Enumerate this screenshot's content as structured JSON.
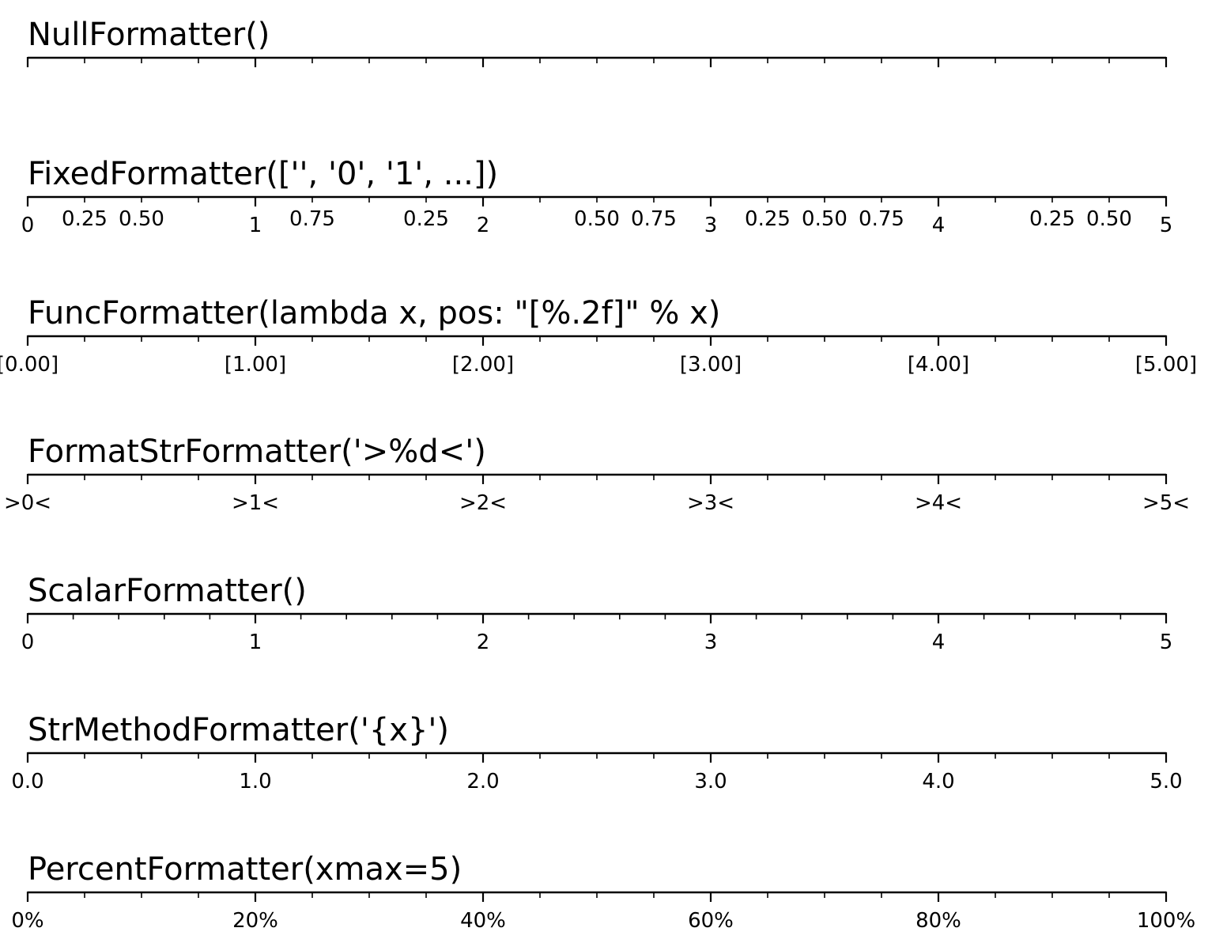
{
  "chart_data": [
    {
      "type": "axis",
      "title": "NullFormatter()",
      "xlim": [
        0,
        5
      ],
      "major_ticks": [
        0,
        1,
        2,
        3,
        4,
        5
      ],
      "major_labels": [],
      "minor_ticks": [
        0.25,
        0.5,
        0.75,
        1.25,
        1.5,
        1.75,
        2.25,
        2.5,
        2.75,
        3.25,
        3.5,
        3.75,
        4.25,
        4.5,
        4.75
      ],
      "minor_labels": []
    },
    {
      "type": "axis",
      "title": "FixedFormatter(['', '0', '1', ...])",
      "xlim": [
        0,
        5
      ],
      "major_ticks": [
        0,
        1,
        2,
        3,
        4,
        5
      ],
      "major_labels": [
        "0",
        "1",
        "2",
        "3",
        "4",
        "5"
      ],
      "minor_ticks": [
        0.25,
        0.5,
        0.75,
        1.25,
        1.5,
        1.75,
        2.25,
        2.5,
        2.75,
        3.25,
        3.5,
        3.75,
        4.25,
        4.5,
        4.75
      ],
      "minor_labels": [
        "0.25",
        "0.50",
        "",
        "0.75",
        "",
        "0.25",
        "",
        "0.50",
        "0.75",
        "0.25",
        "0.50",
        "0.75",
        "",
        "0.25",
        "0.50"
      ]
    },
    {
      "type": "axis",
      "title": "FuncFormatter(lambda x, pos: \"[%.2f]\" % x)",
      "xlim": [
        0,
        5
      ],
      "major_ticks": [
        0,
        1,
        2,
        3,
        4,
        5
      ],
      "major_labels": [
        "[0.00]",
        "[1.00]",
        "[2.00]",
        "[3.00]",
        "[4.00]",
        "[5.00]"
      ],
      "minor_ticks": [
        0.25,
        0.5,
        0.75,
        1.25,
        1.5,
        1.75,
        2.25,
        2.5,
        2.75,
        3.25,
        3.5,
        3.75,
        4.25,
        4.5,
        4.75
      ],
      "minor_labels": []
    },
    {
      "type": "axis",
      "title": "FormatStrFormatter('>%d<')",
      "xlim": [
        0,
        5
      ],
      "major_ticks": [
        0,
        1,
        2,
        3,
        4,
        5
      ],
      "major_labels": [
        ">0<",
        ">1<",
        ">2<",
        ">3<",
        ">4<",
        ">5<"
      ],
      "minor_ticks": [
        0.25,
        0.5,
        0.75,
        1.25,
        1.5,
        1.75,
        2.25,
        2.5,
        2.75,
        3.25,
        3.5,
        3.75,
        4.25,
        4.5,
        4.75
      ],
      "minor_labels": []
    },
    {
      "type": "axis",
      "title": "ScalarFormatter()",
      "xlim": [
        0,
        5
      ],
      "major_ticks": [
        0,
        1,
        2,
        3,
        4,
        5
      ],
      "major_labels": [
        "0",
        "1",
        "2",
        "3",
        "4",
        "5"
      ],
      "minor_ticks": [
        0.2,
        0.4,
        0.6,
        0.8,
        1.2,
        1.4,
        1.6,
        1.8,
        2.2,
        2.4,
        2.6,
        2.8,
        3.2,
        3.4,
        3.6,
        3.8,
        4.2,
        4.4,
        4.6,
        4.8
      ],
      "minor_labels": []
    },
    {
      "type": "axis",
      "title": "StrMethodFormatter('{x}')",
      "xlim": [
        0,
        5
      ],
      "major_ticks": [
        0,
        1,
        2,
        3,
        4,
        5
      ],
      "major_labels": [
        "0.0",
        "1.0",
        "2.0",
        "3.0",
        "4.0",
        "5.0"
      ],
      "minor_ticks": [
        0.25,
        0.5,
        0.75,
        1.25,
        1.5,
        1.75,
        2.25,
        2.5,
        2.75,
        3.25,
        3.5,
        3.75,
        4.25,
        4.5,
        4.75
      ],
      "minor_labels": []
    },
    {
      "type": "axis",
      "title": "PercentFormatter(xmax=5)",
      "xlim": [
        0,
        5
      ],
      "major_ticks": [
        0,
        1,
        2,
        3,
        4,
        5
      ],
      "major_labels": [
        "0%",
        "20%",
        "40%",
        "60%",
        "80%",
        "100%"
      ],
      "minor_ticks": [
        0.25,
        0.5,
        0.75,
        1.25,
        1.5,
        1.75,
        2.25,
        2.5,
        2.75,
        3.25,
        3.5,
        3.75,
        4.25,
        4.5,
        4.75
      ],
      "minor_labels": []
    }
  ]
}
